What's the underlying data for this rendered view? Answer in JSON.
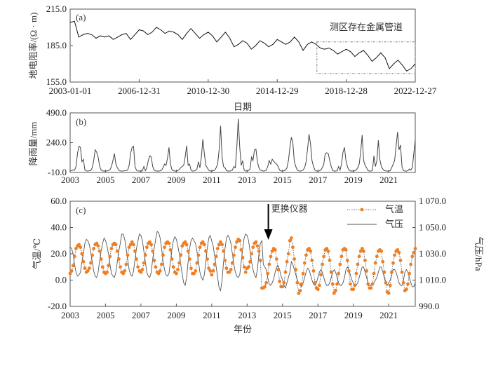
{
  "chart_data": [
    {
      "panel": "(a)",
      "type": "line",
      "ylabel": "地电阻率/(Ω · m)",
      "xlabel": "日期",
      "ylim": [
        155,
        215
      ],
      "yticks": [
        "155.0",
        "185.0",
        "215.0"
      ],
      "yticks_values": [
        155,
        185,
        215
      ],
      "xlim": [
        2003,
        2023
      ],
      "xticks": [
        "2003-01-01",
        "2006-12-31",
        "2010-12-30",
        "2014-12-29",
        "2018-12-28",
        "2022-12-27"
      ],
      "xticks_values": [
        2003,
        2007,
        2011,
        2015,
        2019,
        2023
      ],
      "annotation": "测区存在金属管道",
      "annotation_box": {
        "x": [
          2017.3,
          2023
        ],
        "y": [
          162,
          188
        ]
      },
      "x": [
        2003,
        2003.25,
        2003.5,
        2003.75,
        2004,
        2004.25,
        2004.5,
        2004.75,
        2005,
        2005.25,
        2005.5,
        2005.75,
        2006,
        2006.25,
        2006.5,
        2006.75,
        2007,
        2007.25,
        2007.5,
        2007.75,
        2008,
        2008.25,
        2008.5,
        2008.75,
        2009,
        2009.25,
        2009.5,
        2009.75,
        2010,
        2010.25,
        2010.5,
        2010.75,
        2011,
        2011.25,
        2011.5,
        2011.75,
        2012,
        2012.25,
        2012.5,
        2012.75,
        2013,
        2013.25,
        2013.5,
        2013.75,
        2014,
        2014.25,
        2014.5,
        2014.75,
        2015,
        2015.25,
        2015.5,
        2015.75,
        2016,
        2016.25,
        2016.5,
        2016.75,
        2017,
        2017.25,
        2017.5,
        2017.75,
        2018,
        2018.25,
        2018.5,
        2018.75,
        2019,
        2019.25,
        2019.5,
        2019.75,
        2020,
        2020.25,
        2020.5,
        2020.75,
        2021,
        2021.25,
        2021.5,
        2021.75,
        2022,
        2022.25,
        2022.5,
        2022.75,
        2023
      ],
      "values": [
        204,
        205,
        192,
        194,
        195,
        194,
        191,
        193,
        192,
        193,
        190,
        192,
        194,
        195,
        190,
        194,
        198,
        197,
        194,
        196,
        200,
        198,
        195,
        197,
        196,
        194,
        190,
        195,
        199,
        195,
        191,
        194,
        196,
        193,
        188,
        192,
        196,
        191,
        184,
        186,
        189,
        187,
        182,
        185,
        189,
        187,
        184,
        186,
        190,
        188,
        186,
        188,
        192,
        188,
        181,
        186,
        188,
        186,
        183,
        182,
        183,
        181,
        178,
        180,
        182,
        180,
        176,
        179,
        181,
        177,
        172,
        175,
        179,
        175,
        166,
        170,
        173,
        169,
        164,
        166,
        170
      ],
      "color": "#111111"
    },
    {
      "panel": "(b)",
      "type": "line",
      "ylabel": "降雨量/mm",
      "ylim": [
        -10,
        490
      ],
      "yticks": [
        "-10.0",
        "240.0",
        "490.0"
      ],
      "yticks_values": [
        -10,
        240,
        490
      ],
      "xticks": [
        "2003",
        "2005",
        "2007",
        "2009",
        "2011",
        "2013",
        "2015",
        "2017",
        "2019",
        "2021"
      ],
      "xticks_values": [
        2003,
        2005,
        2007,
        2009,
        2011,
        2013,
        2015,
        2017,
        2019,
        2021
      ],
      "xlim": [
        2003,
        2022.5
      ],
      "monthly": [
        [
          3,
          5,
          12,
          8,
          40,
          150,
          210,
          200,
          80,
          100,
          10,
          3
        ],
        [
          2,
          4,
          6,
          30,
          90,
          180,
          160,
          120,
          40,
          10,
          3,
          2
        ],
        [
          2,
          3,
          5,
          15,
          40,
          90,
          150,
          60,
          30,
          8,
          3,
          2
        ],
        [
          3,
          4,
          6,
          10,
          50,
          150,
          200,
          210,
          40,
          8,
          3,
          2
        ],
        [
          2,
          3,
          40,
          5,
          30,
          90,
          130,
          120,
          40,
          10,
          3,
          2
        ],
        [
          2,
          4,
          10,
          30,
          60,
          50,
          110,
          200,
          60,
          15,
          5,
          2
        ],
        [
          2,
          5,
          15,
          30,
          40,
          50,
          120,
          215,
          50,
          60,
          8,
          2
        ],
        [
          3,
          6,
          20,
          80,
          30,
          120,
          270,
          150,
          50,
          30,
          8,
          2
        ],
        [
          2,
          4,
          10,
          30,
          60,
          180,
          380,
          120,
          40,
          30,
          5,
          2
        ],
        [
          2,
          4,
          10,
          40,
          30,
          200,
          440,
          200,
          50,
          90,
          10,
          2
        ],
        [
          3,
          6,
          20,
          120,
          90,
          180,
          185,
          80,
          30,
          10,
          5,
          2
        ],
        [
          3,
          8,
          40,
          90,
          60,
          100,
          85,
          70,
          60,
          40,
          10,
          3
        ],
        [
          2,
          4,
          10,
          30,
          90,
          200,
          285,
          240,
          80,
          40,
          10,
          3
        ],
        [
          2,
          4,
          12,
          30,
          80,
          190,
          310,
          230,
          90,
          40,
          10,
          2
        ],
        [
          2,
          4,
          10,
          30,
          60,
          150,
          155,
          150,
          90,
          40,
          5,
          2
        ],
        [
          2,
          4,
          40,
          10,
          60,
          160,
          200,
          90,
          40,
          10,
          3,
          2
        ],
        [
          2,
          4,
          12,
          30,
          60,
          160,
          305,
          90,
          50,
          30,
          5,
          2
        ],
        [
          2,
          8,
          130,
          40,
          90,
          260,
          100,
          40,
          20,
          5,
          3,
          2
        ],
        [
          2,
          4,
          30,
          60,
          90,
          210,
          330,
          180,
          220,
          40,
          5,
          2
        ],
        [
          2,
          4,
          20,
          10,
          30,
          150,
          260,
          370,
          50,
          40,
          60,
          5
        ]
      ],
      "color": "#444444"
    },
    {
      "panel": "(c)",
      "type": "line",
      "xlabel": "年份",
      "ylabel_left": "气温/℃",
      "ylabel_right": "气压/hPa",
      "ylim_left": [
        -20,
        60
      ],
      "ylim_right": [
        990,
        1070
      ],
      "yticks_left": [
        "-20.0",
        "0.0",
        "20.0",
        "40.0",
        "60.0"
      ],
      "yticks_left_values": [
        -20,
        0,
        20,
        40,
        60
      ],
      "yticks_right": [
        "990.0",
        "1 010.0",
        "1 030.0",
        "1 050.0",
        "1 070.0"
      ],
      "yticks_right_values": [
        990,
        1010,
        1030,
        1050,
        1070
      ],
      "xticks": [
        "2003",
        "2005",
        "2007",
        "2009",
        "2011",
        "2013",
        "2015",
        "2017",
        "2019",
        "2021"
      ],
      "xticks_values": [
        2003,
        2005,
        2007,
        2009,
        2011,
        2013,
        2015,
        2017,
        2019,
        2021
      ],
      "xlim": [
        2003,
        2022.5
      ],
      "annotation": "更换仪器",
      "annotation_x": 2014.2,
      "legend": [
        "气温",
        "气压"
      ],
      "legend_position": "top-right",
      "series": [
        {
          "name": "气温",
          "color": "#f07f22",
          "style": "dotted-with-markers",
          "monthly": [
            [
              5,
              7,
              11,
              18,
              24,
              26,
              27,
              25,
              20,
              14,
              9,
              6
            ],
            [
              7,
              9,
              13,
              19,
              24,
              27,
              28,
              26,
              22,
              16,
              10,
              6
            ],
            [
              5,
              6,
              11,
              18,
              24,
              27,
              28,
              27,
              22,
              16,
              10,
              6
            ],
            [
              5,
              7,
              12,
              19,
              25,
              27,
              29,
              27,
              22,
              16,
              10,
              7
            ],
            [
              6,
              8,
              13,
              19,
              25,
              28,
              29,
              27,
              22,
              15,
              10,
              6
            ],
            [
              5,
              7,
              12,
              19,
              25,
              28,
              29,
              28,
              23,
              16,
              10,
              6
            ],
            [
              5,
              8,
              13,
              19,
              26,
              28,
              29,
              27,
              22,
              16,
              9,
              5
            ],
            [
              5,
              7,
              13,
              19,
              25,
              28,
              29,
              27,
              22,
              16,
              9,
              7
            ],
            [
              4,
              7,
              12,
              18,
              24,
              27,
              29,
              27,
              22,
              15,
              9,
              6
            ],
            [
              6,
              8,
              13,
              19,
              25,
              29,
              31,
              30,
              23,
              17,
              10,
              6
            ],
            [
              9,
              10,
              14,
              20,
              25,
              28,
              29,
              26,
              22,
              15,
              -6,
              -6
            ],
            [
              -5,
              -2,
              5,
              12,
              18,
              22,
              24,
              23,
              16,
              8,
              -1,
              -5
            ],
            [
              -5,
              -2,
              6,
              14,
              20,
              30,
              32,
              25,
              16,
              8,
              -2,
              -10
            ],
            [
              -8,
              -3,
              5,
              13,
              19,
              23,
              24,
              22,
              15,
              7,
              -2,
              -6
            ],
            [
              -7,
              -4,
              4,
              12,
              18,
              23,
              24,
              22,
              15,
              6,
              -3,
              -10
            ],
            [
              -8,
              -3,
              5,
              12,
              18,
              23,
              24,
              23,
              15,
              7,
              -3,
              -7
            ],
            [
              -7,
              -4,
              5,
              12,
              18,
              22,
              24,
              22,
              15,
              7,
              -3,
              -6
            ],
            [
              -6,
              -3,
              5,
              13,
              18,
              22,
              23,
              22,
              14,
              6,
              -2,
              -9
            ],
            [
              -10,
              -4,
              6,
              13,
              19,
              22,
              23,
              21,
              15,
              6,
              -2,
              -8
            ],
            [
              -7,
              -3,
              5,
              12,
              18,
              21,
              24,
              23,
              15,
              8,
              -2,
              -9
            ]
          ]
        },
        {
          "name": "气压",
          "color": "#555555",
          "style": "solid",
          "monthly": [
            [
              1035,
              1034,
              1030,
              1022,
              1016,
              1013,
              1014,
              1016,
              1024,
              1030,
              1038,
              1041
            ],
            [
              1040,
              1037,
              1031,
              1024,
              1017,
              1013,
              1012,
              1016,
              1025,
              1032,
              1038,
              1042
            ],
            [
              1040,
              1036,
              1030,
              1022,
              1015,
              1013,
              1012,
              1016,
              1024,
              1032,
              1038,
              1045
            ],
            [
              1045,
              1041,
              1034,
              1026,
              1018,
              1014,
              1013,
              1017,
              1026,
              1034,
              1040,
              1045
            ],
            [
              1044,
              1040,
              1032,
              1024,
              1016,
              1013,
              1012,
              1016,
              1026,
              1034,
              1041,
              1047
            ],
            [
              1046,
              1042,
              1034,
              1024,
              1018,
              1014,
              1013,
              1015,
              1024,
              1033,
              1040,
              1043
            ],
            [
              1041,
              1036,
              1030,
              1022,
              1014,
              1008,
              1006,
              1012,
              1024,
              1034,
              1040,
              1042
            ],
            [
              1040,
              1038,
              1032,
              1024,
              1016,
              1012,
              1010,
              1014,
              1024,
              1034,
              1042,
              1044
            ],
            [
              1040,
              1036,
              1028,
              1020,
              1012,
              1004,
              1002,
              1010,
              1024,
              1034,
              1042,
              1044
            ],
            [
              1042,
              1038,
              1030,
              1022,
              1016,
              1013,
              1012,
              1014,
              1024,
              1034,
              1042,
              1045
            ],
            [
              1044,
              1040,
              1032,
              1024,
              1018,
              1014,
              1012,
              1018,
              1030,
              1038,
              1040,
              1022
            ],
            [
              1020,
              1018,
              1012,
              1007,
              1006,
              1008,
              1011,
              1016,
              1020,
              1021,
              1018,
              1013
            ],
            [
              1010,
              1006,
              1004,
              1008,
              1012,
              1016,
              1024,
              1022,
              1018,
              1014,
              1010,
              1008
            ],
            [
              1006,
              1005,
              1008,
              1012,
              1016,
              1019,
              1018,
              1014,
              1010,
              1007,
              1006,
              1008
            ],
            [
              1012,
              1016,
              1018,
              1016,
              1012,
              1008,
              1006,
              1006,
              1008,
              1012,
              1016,
              1018
            ],
            [
              1016,
              1012,
              1008,
              1006,
              1006,
              1008,
              1012,
              1018,
              1020,
              1018,
              1014,
              1010
            ],
            [
              1008,
              1006,
              1006,
              1008,
              1012,
              1016,
              1020,
              1020,
              1016,
              1012,
              1008,
              1006
            ],
            [
              1006,
              1006,
              1008,
              1010,
              1012,
              1016,
              1020,
              1020,
              1016,
              1012,
              1008,
              1006
            ],
            [
              1008,
              1010,
              1014,
              1018,
              1018,
              1016,
              1012,
              1008,
              1006,
              1006,
              1010,
              1016
            ],
            [
              1018,
              1016,
              1012,
              1008,
              1005,
              1005,
              1008,
              1012,
              1016,
              1018,
              1014,
              1016
            ]
          ]
        }
      ]
    }
  ]
}
